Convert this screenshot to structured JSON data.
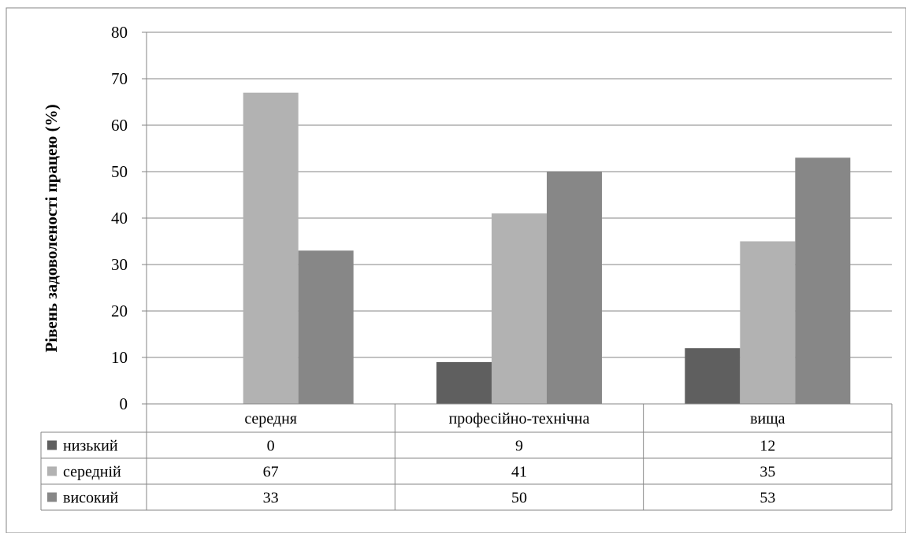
{
  "chart_data": {
    "type": "bar",
    "title": "",
    "xlabel": "",
    "ylabel": "Рівень задоволеності працею (%)",
    "ylim": [
      0,
      80
    ],
    "yticks": [
      0,
      10,
      20,
      30,
      40,
      50,
      60,
      70,
      80
    ],
    "grid": true,
    "legend": "data-table-left",
    "categories": [
      "середня",
      "професійно-технічна",
      "вища"
    ],
    "series": [
      {
        "name": "низький",
        "color": "#5f5f5f",
        "values": [
          0,
          9,
          12
        ]
      },
      {
        "name": "середній",
        "color": "#b2b2b2",
        "values": [
          67,
          41,
          35
        ]
      },
      {
        "name": "високий",
        "color": "#878787",
        "values": [
          33,
          50,
          53
        ]
      }
    ]
  }
}
